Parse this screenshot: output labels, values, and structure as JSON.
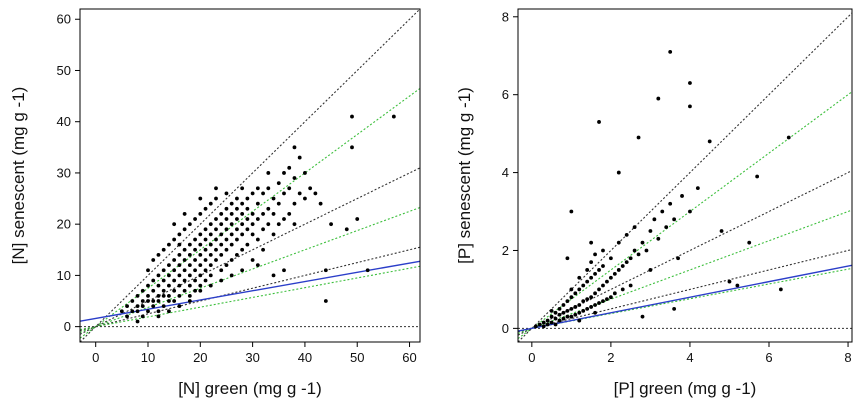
{
  "chart_data": [
    {
      "type": "scatter",
      "xlabel": "[N] green (mg g -1)",
      "ylabel": "[N] senescent (mg g -1)",
      "xlim": [
        -3,
        62
      ],
      "ylim": [
        -3,
        62
      ],
      "xticks": [
        0,
        10,
        20,
        30,
        40,
        50,
        60
      ],
      "yticks": [
        0,
        10,
        20,
        30,
        40,
        50,
        60
      ],
      "xtick_labels": [
        "0",
        "10",
        "20",
        "30",
        "40",
        "50",
        "60"
      ],
      "ytick_labels": [
        "0",
        "10",
        "20",
        "30",
        "40",
        "50",
        "60"
      ],
      "grid": false,
      "points": [
        [
          5,
          3
        ],
        [
          6,
          4
        ],
        [
          6,
          2
        ],
        [
          7,
          5
        ],
        [
          7,
          3
        ],
        [
          8,
          6
        ],
        [
          8,
          4
        ],
        [
          8,
          3
        ],
        [
          9,
          7
        ],
        [
          9,
          5
        ],
        [
          9,
          4
        ],
        [
          9,
          2
        ],
        [
          10,
          8
        ],
        [
          10,
          6
        ],
        [
          10,
          5
        ],
        [
          10,
          3
        ],
        [
          10,
          11
        ],
        [
          11,
          9
        ],
        [
          11,
          7
        ],
        [
          11,
          5
        ],
        [
          11,
          4
        ],
        [
          11,
          13
        ],
        [
          12,
          10
        ],
        [
          12,
          8
        ],
        [
          12,
          6
        ],
        [
          12,
          5
        ],
        [
          12,
          14
        ],
        [
          12,
          3
        ],
        [
          13,
          11
        ],
        [
          13,
          9
        ],
        [
          13,
          7
        ],
        [
          13,
          6
        ],
        [
          13,
          15
        ],
        [
          13,
          4
        ],
        [
          14,
          12
        ],
        [
          14,
          10
        ],
        [
          14,
          8
        ],
        [
          14,
          6
        ],
        [
          14,
          16
        ],
        [
          14,
          5
        ],
        [
          15,
          13
        ],
        [
          15,
          11
        ],
        [
          15,
          9
        ],
        [
          15,
          7
        ],
        [
          15,
          17
        ],
        [
          15,
          5
        ],
        [
          15,
          20
        ],
        [
          16,
          14
        ],
        [
          16,
          12
        ],
        [
          16,
          10
        ],
        [
          16,
          8
        ],
        [
          16,
          6
        ],
        [
          16,
          18
        ],
        [
          16,
          16
        ],
        [
          17,
          15
        ],
        [
          17,
          13
        ],
        [
          17,
          11
        ],
        [
          17,
          9
        ],
        [
          17,
          7
        ],
        [
          17,
          19
        ],
        [
          17,
          22
        ],
        [
          18,
          16
        ],
        [
          18,
          14
        ],
        [
          18,
          12
        ],
        [
          18,
          10
        ],
        [
          18,
          8
        ],
        [
          18,
          20
        ],
        [
          18,
          6
        ],
        [
          19,
          17
        ],
        [
          19,
          15
        ],
        [
          19,
          13
        ],
        [
          19,
          11
        ],
        [
          19,
          9
        ],
        [
          19,
          21
        ],
        [
          19,
          7
        ],
        [
          20,
          18
        ],
        [
          20,
          16
        ],
        [
          20,
          14
        ],
        [
          20,
          12
        ],
        [
          20,
          10
        ],
        [
          20,
          22
        ],
        [
          20,
          8
        ],
        [
          20,
          25
        ],
        [
          21,
          19
        ],
        [
          21,
          17
        ],
        [
          21,
          15
        ],
        [
          21,
          13
        ],
        [
          21,
          11
        ],
        [
          21,
          23
        ],
        [
          21,
          9
        ],
        [
          22,
          20
        ],
        [
          22,
          18
        ],
        [
          22,
          16
        ],
        [
          22,
          14
        ],
        [
          22,
          12
        ],
        [
          22,
          24
        ],
        [
          22,
          10
        ],
        [
          23,
          21
        ],
        [
          23,
          19
        ],
        [
          23,
          17
        ],
        [
          23,
          15
        ],
        [
          23,
          13
        ],
        [
          23,
          25
        ],
        [
          23,
          27
        ],
        [
          24,
          22
        ],
        [
          24,
          20
        ],
        [
          24,
          18
        ],
        [
          24,
          16
        ],
        [
          24,
          14
        ],
        [
          24,
          11
        ],
        [
          25,
          23
        ],
        [
          25,
          21
        ],
        [
          25,
          19
        ],
        [
          25,
          17
        ],
        [
          25,
          15
        ],
        [
          25,
          26
        ],
        [
          25,
          12
        ],
        [
          26,
          22
        ],
        [
          26,
          20
        ],
        [
          26,
          18
        ],
        [
          26,
          16
        ],
        [
          26,
          24
        ],
        [
          26,
          13
        ],
        [
          27,
          23
        ],
        [
          27,
          21
        ],
        [
          27,
          19
        ],
        [
          27,
          17
        ],
        [
          27,
          25
        ],
        [
          27,
          14
        ],
        [
          28,
          24
        ],
        [
          28,
          22
        ],
        [
          28,
          20
        ],
        [
          28,
          18
        ],
        [
          28,
          27
        ],
        [
          28,
          15
        ],
        [
          29,
          25
        ],
        [
          29,
          23
        ],
        [
          29,
          21
        ],
        [
          29,
          19
        ],
        [
          29,
          16
        ],
        [
          30,
          26
        ],
        [
          30,
          22
        ],
        [
          30,
          20
        ],
        [
          30,
          18
        ],
        [
          30,
          13
        ],
        [
          31,
          27
        ],
        [
          31,
          24
        ],
        [
          31,
          21
        ],
        [
          31,
          17
        ],
        [
          32,
          26
        ],
        [
          32,
          22
        ],
        [
          32,
          19
        ],
        [
          32,
          15
        ],
        [
          33,
          27
        ],
        [
          33,
          23
        ],
        [
          33,
          20
        ],
        [
          33,
          30
        ],
        [
          34,
          25
        ],
        [
          34,
          22
        ],
        [
          34,
          18
        ],
        [
          35,
          28
        ],
        [
          35,
          24
        ],
        [
          35,
          20
        ],
        [
          36,
          30
        ],
        [
          36,
          26
        ],
        [
          36,
          21
        ],
        [
          37,
          31
        ],
        [
          37,
          27
        ],
        [
          37,
          22
        ],
        [
          38,
          35
        ],
        [
          38,
          29
        ],
        [
          38,
          24
        ],
        [
          38,
          20
        ],
        [
          39,
          33
        ],
        [
          39,
          26
        ],
        [
          40,
          30
        ],
        [
          40,
          25
        ],
        [
          41,
          27
        ],
        [
          42,
          26
        ],
        [
          43,
          24
        ],
        [
          44,
          11
        ],
        [
          44,
          5
        ],
        [
          45,
          20
        ],
        [
          48,
          19
        ],
        [
          49,
          41
        ],
        [
          49,
          35
        ],
        [
          50,
          21
        ],
        [
          52,
          11
        ],
        [
          57,
          41
        ],
        [
          34,
          10
        ],
        [
          36,
          11
        ],
        [
          31,
          12
        ],
        [
          28,
          11
        ],
        [
          26,
          10
        ],
        [
          24,
          9
        ],
        [
          22,
          8
        ],
        [
          20,
          7
        ],
        [
          18,
          5
        ],
        [
          16,
          4
        ],
        [
          14,
          3
        ],
        [
          12,
          2
        ],
        [
          8,
          1
        ]
      ],
      "reference_lines": [
        {
          "slope": 1.0,
          "intercept": 0,
          "color": "#333333",
          "style": "dotted"
        },
        {
          "slope": 0.75,
          "intercept": 0,
          "color": "#3cbf3c",
          "style": "dotted"
        },
        {
          "slope": 0.5,
          "intercept": 0,
          "color": "#333333",
          "style": "dotted"
        },
        {
          "slope": 0.375,
          "intercept": 0,
          "color": "#3cbf3c",
          "style": "dotted"
        },
        {
          "slope": 0.25,
          "intercept": 0,
          "color": "#333333",
          "style": "dotted"
        },
        {
          "slope": 0.19,
          "intercept": 0,
          "color": "#3cbf3c",
          "style": "dotted"
        },
        {
          "slope": 0,
          "intercept": 0,
          "color": "#333333",
          "style": "dotted"
        }
      ],
      "regression_line": {
        "slope": 0.18,
        "intercept": 1.6,
        "color": "#2b3ec9"
      }
    },
    {
      "type": "scatter",
      "xlabel": "[P] green (mg g -1)",
      "ylabel": "[P] senescent (mg g -1)",
      "xlim": [
        -0.35,
        8.1
      ],
      "ylim": [
        -0.35,
        8.2
      ],
      "xticks": [
        0,
        2,
        4,
        6,
        8
      ],
      "yticks": [
        0,
        2,
        4,
        6,
        8
      ],
      "xtick_labels": [
        "0",
        "2",
        "4",
        "6",
        "8"
      ],
      "ytick_labels": [
        "0",
        "2",
        "4",
        "6",
        "8"
      ],
      "grid": false,
      "points": [
        [
          0.1,
          0.05
        ],
        [
          0.2,
          0.1
        ],
        [
          0.3,
          0.15
        ],
        [
          0.3,
          0.05
        ],
        [
          0.4,
          0.2
        ],
        [
          0.4,
          0.1
        ],
        [
          0.5,
          0.3
        ],
        [
          0.5,
          0.15
        ],
        [
          0.5,
          0.45
        ],
        [
          0.6,
          0.25
        ],
        [
          0.6,
          0.4
        ],
        [
          0.6,
          0.1
        ],
        [
          0.7,
          0.35
        ],
        [
          0.7,
          0.5
        ],
        [
          0.7,
          0.2
        ],
        [
          0.8,
          0.4
        ],
        [
          0.8,
          0.6
        ],
        [
          0.8,
          0.25
        ],
        [
          0.9,
          0.45
        ],
        [
          0.9,
          0.7
        ],
        [
          0.9,
          0.3
        ],
        [
          1.0,
          0.5
        ],
        [
          1.0,
          0.8
        ],
        [
          1.0,
          0.3
        ],
        [
          1.0,
          1.0
        ],
        [
          1.1,
          0.55
        ],
        [
          1.1,
          0.9
        ],
        [
          1.1,
          0.35
        ],
        [
          1.2,
          0.6
        ],
        [
          1.2,
          1.0
        ],
        [
          1.2,
          0.4
        ],
        [
          1.2,
          1.3
        ],
        [
          1.3,
          0.7
        ],
        [
          1.3,
          1.1
        ],
        [
          1.3,
          0.45
        ],
        [
          1.4,
          0.75
        ],
        [
          1.4,
          1.2
        ],
        [
          1.4,
          0.5
        ],
        [
          1.4,
          1.5
        ],
        [
          1.5,
          0.8
        ],
        [
          1.5,
          1.3
        ],
        [
          1.5,
          0.55
        ],
        [
          1.5,
          1.7
        ],
        [
          1.6,
          0.9
        ],
        [
          1.6,
          1.4
        ],
        [
          1.6,
          0.6
        ],
        [
          1.6,
          1.9
        ],
        [
          1.7,
          1.0
        ],
        [
          1.7,
          1.5
        ],
        [
          1.7,
          0.65
        ],
        [
          1.8,
          1.1
        ],
        [
          1.8,
          1.6
        ],
        [
          1.8,
          0.7
        ],
        [
          1.8,
          2.0
        ],
        [
          1.9,
          1.2
        ],
        [
          1.9,
          0.75
        ],
        [
          2.0,
          1.3
        ],
        [
          2.0,
          0.8
        ],
        [
          2.0,
          1.8
        ],
        [
          2.1,
          1.4
        ],
        [
          2.1,
          0.9
        ],
        [
          2.2,
          1.5
        ],
        [
          2.2,
          2.2
        ],
        [
          2.3,
          1.6
        ],
        [
          2.3,
          1.0
        ],
        [
          2.4,
          1.7
        ],
        [
          2.4,
          2.4
        ],
        [
          2.5,
          1.8
        ],
        [
          2.5,
          1.1
        ],
        [
          2.6,
          2.0
        ],
        [
          2.6,
          2.6
        ],
        [
          2.7,
          1.9
        ],
        [
          2.8,
          2.2
        ],
        [
          2.9,
          2.0
        ],
        [
          3.0,
          2.5
        ],
        [
          3.0,
          1.5
        ],
        [
          3.1,
          2.8
        ],
        [
          3.2,
          2.3
        ],
        [
          3.3,
          3.0
        ],
        [
          3.4,
          2.6
        ],
        [
          3.5,
          3.2
        ],
        [
          3.6,
          2.8
        ],
        [
          3.7,
          1.8
        ],
        [
          3.8,
          3.4
        ],
        [
          4.0,
          3.0
        ],
        [
          4.2,
          3.6
        ],
        [
          4.5,
          4.8
        ],
        [
          4.8,
          2.5
        ],
        [
          5.0,
          1.2
        ],
        [
          5.5,
          2.2
        ],
        [
          5.7,
          3.9
        ],
        [
          6.5,
          4.9
        ],
        [
          3.5,
          7.1
        ],
        [
          4.0,
          6.3
        ],
        [
          3.2,
          5.9
        ],
        [
          4.0,
          5.7
        ],
        [
          1.7,
          5.3
        ],
        [
          2.7,
          4.9
        ],
        [
          2.2,
          4.0
        ],
        [
          1.0,
          3.0
        ],
        [
          1.5,
          2.2
        ],
        [
          0.9,
          1.8
        ],
        [
          5.2,
          1.1
        ],
        [
          6.3,
          1.0
        ],
        [
          3.6,
          0.5
        ],
        [
          2.8,
          0.3
        ],
        [
          1.6,
          0.4
        ],
        [
          1.2,
          0.2
        ]
      ],
      "reference_lines": [
        {
          "slope": 1.0,
          "intercept": 0,
          "color": "#333333",
          "style": "dotted"
        },
        {
          "slope": 0.75,
          "intercept": 0,
          "color": "#3cbf3c",
          "style": "dotted"
        },
        {
          "slope": 0.5,
          "intercept": 0,
          "color": "#333333",
          "style": "dotted"
        },
        {
          "slope": 0.375,
          "intercept": 0,
          "color": "#3cbf3c",
          "style": "dotted"
        },
        {
          "slope": 0.25,
          "intercept": 0,
          "color": "#333333",
          "style": "dotted"
        },
        {
          "slope": 0.19,
          "intercept": 0,
          "color": "#3cbf3c",
          "style": "dotted"
        },
        {
          "slope": 0,
          "intercept": 0,
          "color": "#333333",
          "style": "dotted"
        }
      ],
      "regression_line": {
        "slope": 0.2,
        "intercept": 0.0,
        "color": "#2b3ec9"
      }
    }
  ]
}
